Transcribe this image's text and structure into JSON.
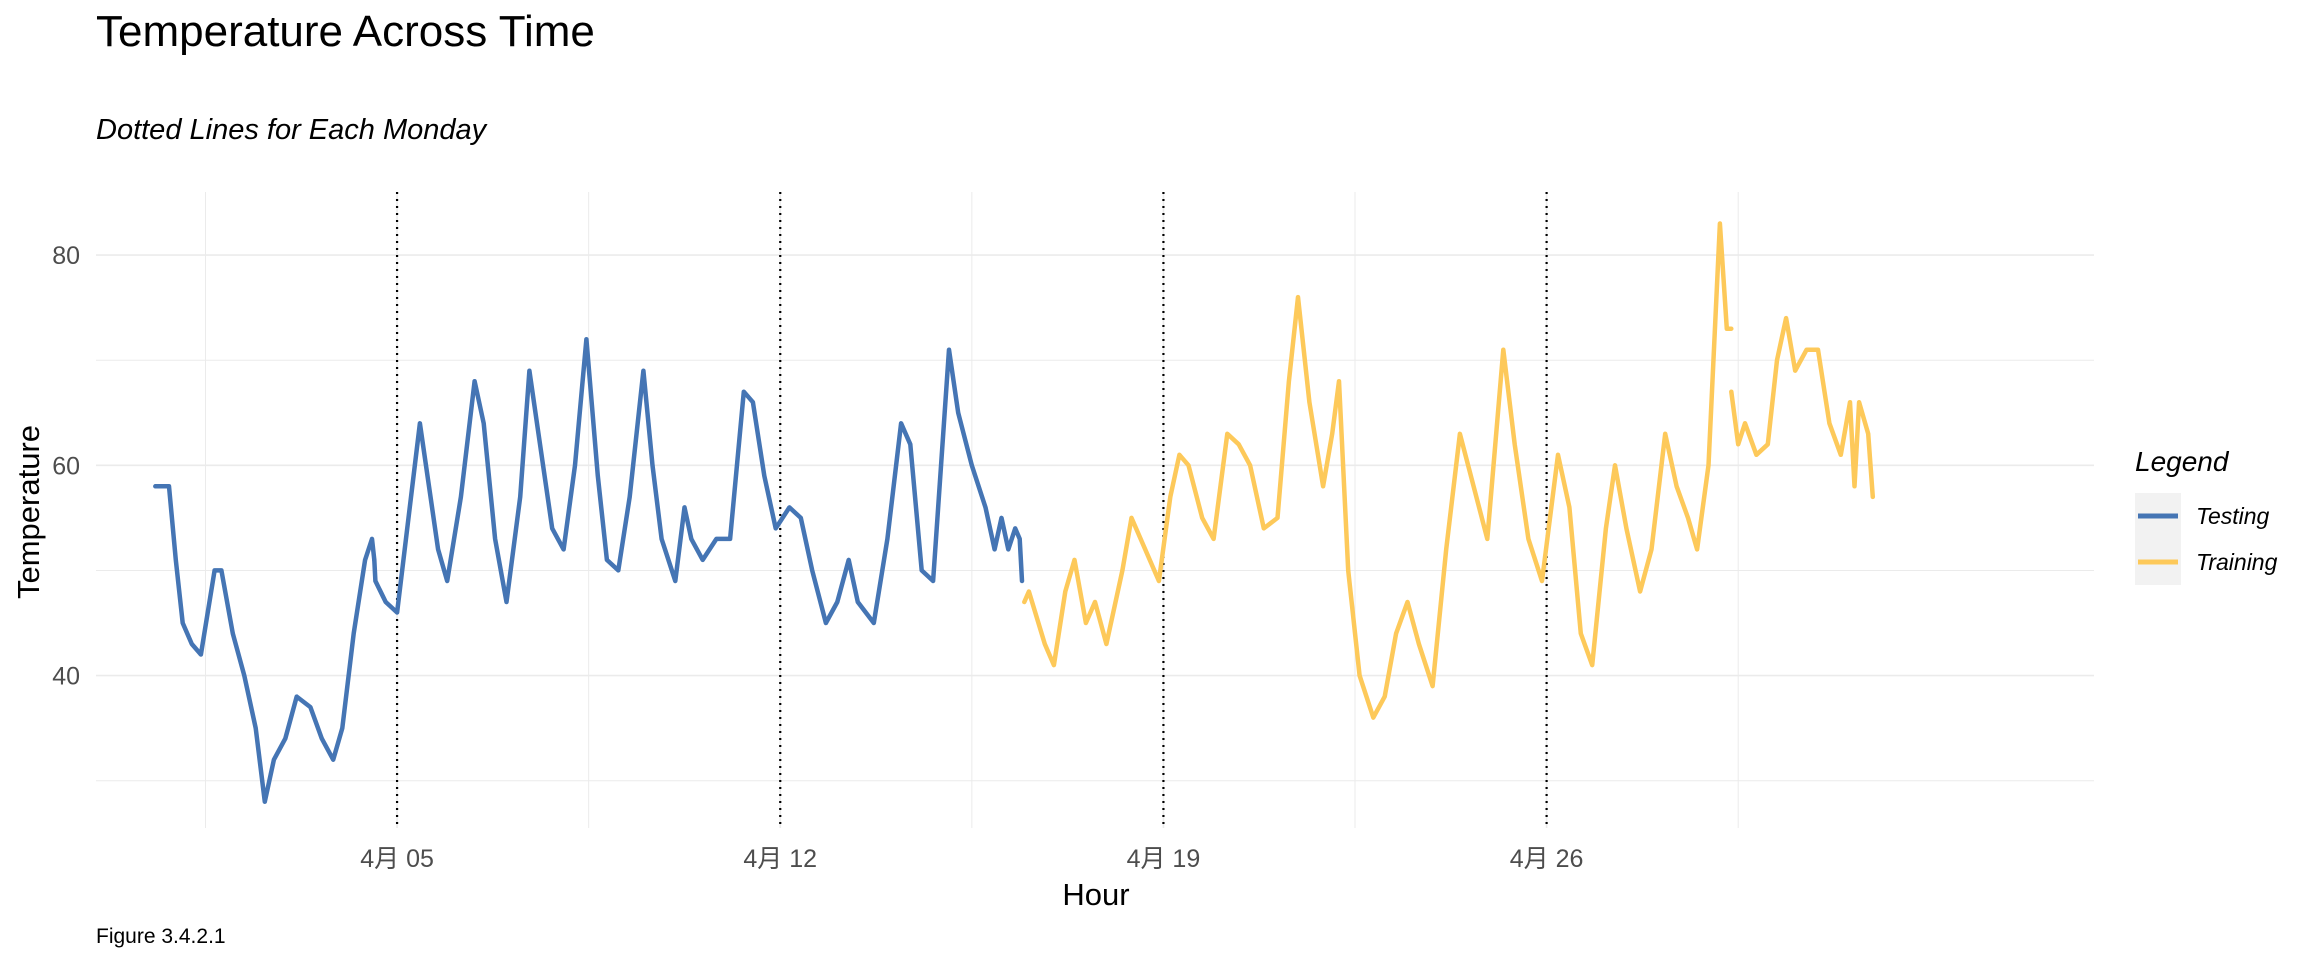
{
  "colors": {
    "testing": "#4575b4",
    "training": "#fdc95a",
    "grid": "#ebebeb",
    "vline": "#000000"
  },
  "chart_data": {
    "type": "line",
    "title": "Temperature Across Time",
    "subtitle": "Dotted Lines for Each Monday",
    "xlabel": "Hour",
    "ylabel": "Temperature",
    "caption": "Figure 3.4.2.1",
    "x_unit": "date",
    "xlim": [
      "2020-03-30T12:00",
      "2020-05-06T00:00"
    ],
    "ylim": [
      25.5,
      86
    ],
    "y_ticks": [
      40,
      60,
      80
    ],
    "x_ticks": [
      {
        "date": "2020-04-05",
        "label": "4月 05"
      },
      {
        "date": "2020-04-12",
        "label": "4月 12"
      },
      {
        "date": "2020-04-19",
        "label": "4月 19"
      },
      {
        "date": "2020-04-26",
        "label": "4月 26"
      }
    ],
    "x_minor_ticks": [
      "2020-04-01T12:00",
      "2020-04-08T12:00",
      "2020-04-15T12:00",
      "2020-04-22T12:00",
      "2020-04-29T12:00"
    ],
    "vertical_lines": [
      "2020-04-05",
      "2020-04-12",
      "2020-04-19",
      "2020-04-26"
    ],
    "grid": true,
    "legend": {
      "title": "Legend",
      "position": "right",
      "entries": [
        "Testing",
        "Training"
      ]
    },
    "series": [
      {
        "name": "Testing",
        "color": "#4575b4",
        "points": [
          [
            "2020-03-31T14:00",
            58
          ],
          [
            "2020-03-31T20:00",
            58
          ],
          [
            "2020-03-31T23:00",
            51
          ],
          [
            "2020-04-01T02:00",
            45
          ],
          [
            "2020-04-01T06:00",
            43
          ],
          [
            "2020-04-01T10:00",
            42
          ],
          [
            "2020-04-01T16:00",
            50
          ],
          [
            "2020-04-01T19:00",
            50
          ],
          [
            "2020-04-02T00:00",
            44
          ],
          [
            "2020-04-02T05:00",
            40
          ],
          [
            "2020-04-02T10:00",
            35
          ],
          [
            "2020-04-02T14:00",
            28
          ],
          [
            "2020-04-02T18:00",
            32
          ],
          [
            "2020-04-02T23:00",
            34
          ],
          [
            "2020-04-03T04:00",
            38
          ],
          [
            "2020-04-03T10:00",
            37
          ],
          [
            "2020-04-03T15:00",
            34
          ],
          [
            "2020-04-03T20:00",
            32
          ],
          [
            "2020-04-04T00:00",
            35
          ],
          [
            "2020-04-04T05:00",
            44
          ],
          [
            "2020-04-04T10:00",
            51
          ],
          [
            "2020-04-04T13:00",
            53
          ],
          [
            "2020-04-04T14:00",
            51
          ]
        ]
      },
      {
        "name": "Testing",
        "color": "#4575b4",
        "points": [
          [
            "2020-04-04T14:00",
            51
          ],
          [
            "2020-04-04T14:30",
            49
          ],
          [
            "2020-04-04T19:00",
            47
          ],
          [
            "2020-04-05T00:00",
            46
          ],
          [
            "2020-04-05T05:00",
            55
          ],
          [
            "2020-04-05T10:00",
            64
          ],
          [
            "2020-04-05T14:00",
            58
          ],
          [
            "2020-04-05T18:00",
            52
          ],
          [
            "2020-04-05T22:00",
            49
          ],
          [
            "2020-04-06T04:00",
            57
          ],
          [
            "2020-04-06T10:00",
            68
          ],
          [
            "2020-04-06T14:00",
            64
          ],
          [
            "2020-04-06T19:00",
            53
          ],
          [
            "2020-04-07T00:00",
            47
          ],
          [
            "2020-04-07T06:00",
            57
          ],
          [
            "2020-04-07T10:00",
            69
          ],
          [
            "2020-04-07T14:00",
            63
          ],
          [
            "2020-04-07T20:00",
            54
          ],
          [
            "2020-04-08T01:00",
            52
          ],
          [
            "2020-04-08T06:00",
            60
          ],
          [
            "2020-04-08T11:00",
            72
          ],
          [
            "2020-04-08T16:00",
            59
          ],
          [
            "2020-04-08T20:00",
            51
          ],
          [
            "2020-04-09T01:00",
            50
          ],
          [
            "2020-04-09T06:00",
            57
          ],
          [
            "2020-04-09T12:00",
            69
          ],
          [
            "2020-04-09T16:00",
            60
          ],
          [
            "2020-04-09T20:00",
            53
          ],
          [
            "2020-04-10T02:00",
            49
          ],
          [
            "2020-04-10T06:00",
            56
          ],
          [
            "2020-04-10T09:00",
            53
          ],
          [
            "2020-04-10T14:00",
            51
          ],
          [
            "2020-04-10T20:00",
            53
          ],
          [
            "2020-04-11T02:00",
            53
          ],
          [
            "2020-04-11T08:00",
            67
          ],
          [
            "2020-04-11T12:00",
            66
          ],
          [
            "2020-04-11T17:00",
            59
          ],
          [
            "2020-04-11T22:00",
            54
          ],
          [
            "2020-04-12T04:00",
            56
          ],
          [
            "2020-04-12T09:00",
            55
          ],
          [
            "2020-04-12T14:00",
            50
          ],
          [
            "2020-04-12T20:00",
            45
          ],
          [
            "2020-04-13T01:00",
            47
          ],
          [
            "2020-04-13T06:00",
            51
          ],
          [
            "2020-04-13T10:00",
            47
          ],
          [
            "2020-04-13T17:00",
            45
          ],
          [
            "2020-04-13T23:00",
            53
          ],
          [
            "2020-04-14T05:00",
            64
          ],
          [
            "2020-04-14T09:00",
            62
          ],
          [
            "2020-04-14T14:00",
            50
          ],
          [
            "2020-04-14T19:00",
            49
          ],
          [
            "2020-04-15T02:00",
            71
          ],
          [
            "2020-04-15T06:00",
            65
          ],
          [
            "2020-04-15T12:00",
            60
          ],
          [
            "2020-04-15T18:00",
            56
          ],
          [
            "2020-04-15T22:00",
            52
          ],
          [
            "2020-04-16T01:00",
            55
          ],
          [
            "2020-04-16T04:00",
            52
          ],
          [
            "2020-04-16T07:00",
            54
          ],
          [
            "2020-04-16T09:00",
            53
          ],
          [
            "2020-04-16T10:00",
            49
          ]
        ]
      },
      {
        "name": "Training",
        "color": "#fdc95a",
        "points": [
          [
            "2020-04-16T11:00",
            47
          ],
          [
            "2020-04-16T13:00",
            48
          ],
          [
            "2020-04-16T20:00",
            43
          ],
          [
            "2020-04-17T00:00",
            41
          ],
          [
            "2020-04-17T05:00",
            48
          ],
          [
            "2020-04-17T09:00",
            51
          ],
          [
            "2020-04-17T14:00",
            45
          ],
          [
            "2020-04-17T18:00",
            47
          ],
          [
            "2020-04-17T23:00",
            43
          ],
          [
            "2020-04-18T06:00",
            50
          ],
          [
            "2020-04-18T10:00",
            55
          ],
          [
            "2020-04-18T16:00",
            52
          ],
          [
            "2020-04-18T22:00",
            49
          ],
          [
            "2020-04-19T03:00",
            57
          ],
          [
            "2020-04-19T07:00",
            61
          ],
          [
            "2020-04-19T11:00",
            60
          ],
          [
            "2020-04-19T17:00",
            55
          ],
          [
            "2020-04-19T22:00",
            53
          ],
          [
            "2020-04-20T04:00",
            63
          ],
          [
            "2020-04-20T09:00",
            62
          ],
          [
            "2020-04-20T14:00",
            60
          ],
          [
            "2020-04-20T20:00",
            54
          ],
          [
            "2020-04-21T02:00",
            55
          ],
          [
            "2020-04-21T07:00",
            68
          ],
          [
            "2020-04-21T11:00",
            76
          ],
          [
            "2020-04-21T16:00",
            66
          ],
          [
            "2020-04-21T22:00",
            58
          ],
          [
            "2020-04-22T02:00",
            63
          ],
          [
            "2020-04-22T05:00",
            68
          ],
          [
            "2020-04-22T09:00",
            50
          ],
          [
            "2020-04-22T14:00",
            40
          ],
          [
            "2020-04-22T20:00",
            36
          ],
          [
            "2020-04-23T01:00",
            38
          ],
          [
            "2020-04-23T06:00",
            44
          ],
          [
            "2020-04-23T11:00",
            47
          ],
          [
            "2020-04-23T16:00",
            43
          ],
          [
            "2020-04-23T22:00",
            39
          ],
          [
            "2020-04-24T04:00",
            52
          ],
          [
            "2020-04-24T10:00",
            63
          ],
          [
            "2020-04-24T16:00",
            58
          ],
          [
            "2020-04-24T22:00",
            53
          ],
          [
            "2020-04-25T05:00",
            71
          ],
          [
            "2020-04-25T10:00",
            62
          ],
          [
            "2020-04-25T16:00",
            53
          ],
          [
            "2020-04-25T22:00",
            49
          ],
          [
            "2020-04-26T05:00",
            61
          ],
          [
            "2020-04-26T10:00",
            56
          ],
          [
            "2020-04-26T15:00",
            44
          ],
          [
            "2020-04-26T20:00",
            41
          ],
          [
            "2020-04-27T02:00",
            54
          ],
          [
            "2020-04-27T06:00",
            60
          ],
          [
            "2020-04-27T11:00",
            54
          ],
          [
            "2020-04-27T17:00",
            48
          ],
          [
            "2020-04-27T22:00",
            52
          ],
          [
            "2020-04-28T04:00",
            63
          ],
          [
            "2020-04-28T09:00",
            58
          ],
          [
            "2020-04-28T14:00",
            55
          ],
          [
            "2020-04-28T18:00",
            52
          ],
          [
            "2020-04-28T23:00",
            60
          ],
          [
            "2020-04-29T04:00",
            83
          ],
          [
            "2020-04-29T07:00",
            73
          ],
          [
            "2020-04-29T09:00",
            73
          ]
        ]
      },
      {
        "name": "Training",
        "color": "#fdc95a",
        "points": [
          [
            "2020-04-29T09:00",
            67
          ],
          [
            "2020-04-29T12:00",
            62
          ],
          [
            "2020-04-29T15:00",
            64
          ],
          [
            "2020-04-29T20:00",
            61
          ],
          [
            "2020-04-30T01:00",
            62
          ],
          [
            "2020-04-30T05:00",
            70
          ],
          [
            "2020-04-30T09:00",
            74
          ],
          [
            "2020-04-30T13:00",
            69
          ],
          [
            "2020-04-30T18:00",
            71
          ],
          [
            "2020-04-30T23:00",
            71
          ],
          [
            "2020-05-01T04:00",
            64
          ],
          [
            "2020-05-01T09:00",
            61
          ],
          [
            "2020-05-01T13:00",
            66
          ],
          [
            "2020-05-01T15:00",
            58
          ],
          [
            "2020-05-01T17:00",
            66
          ],
          [
            "2020-05-01T21:00",
            63
          ],
          [
            "2020-05-01T23:00",
            57
          ]
        ]
      }
    ]
  }
}
